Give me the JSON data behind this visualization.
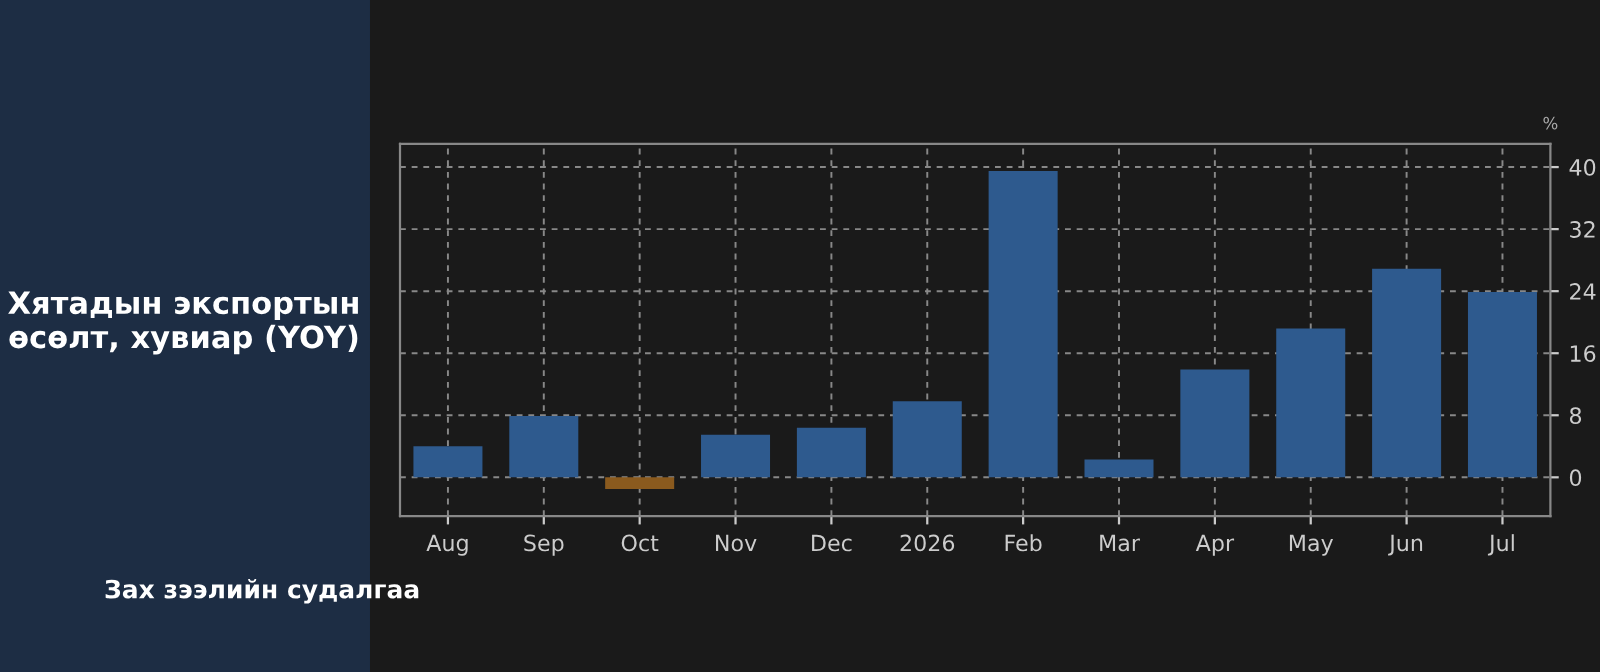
{
  "chart_data": {
    "type": "bar",
    "title": "Хятадын экспортын өсөлт, хувиар (YOY)",
    "ylabel": "%",
    "categories": [
      "Aug",
      "Sep",
      "Oct",
      "Nov",
      "Dec",
      "2026",
      "Feb",
      "Mar",
      "Apr",
      "May",
      "Jun",
      "Jul"
    ],
    "values": [
      4.0,
      7.9,
      -1.5,
      5.5,
      6.4,
      9.8,
      39.5,
      2.3,
      13.9,
      19.2,
      26.9,
      23.9
    ],
    "colors": [
      "#2e5a8e",
      "#2e5a8e",
      "#8a5a1e",
      "#2e5a8e",
      "#2e5a8e",
      "#2e5a8e",
      "#2e5a8e",
      "#2e5a8e",
      "#2e5a8e",
      "#2e5a8e",
      "#2e5a8e",
      "#2e5a8e"
    ],
    "ylim": [
      -5,
      43
    ],
    "yticks": [
      0,
      8,
      16,
      24,
      32,
      40
    ],
    "grid": true,
    "annotations": [
      "Зах зээлийн судалгаа"
    ]
  }
}
